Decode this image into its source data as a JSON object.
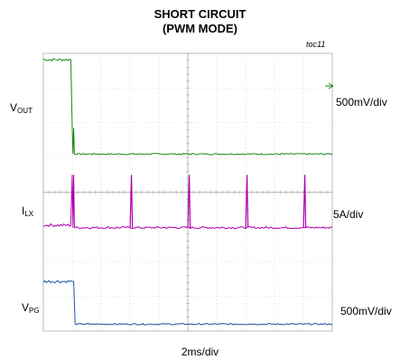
{
  "chart_data": {
    "type": "line",
    "title": "SHORT CIRCUIT",
    "subtitle": "(PWM MODE)",
    "figure_ref": "toc11",
    "xlabel": "2ms/div",
    "grid": true,
    "x_divisions": 10,
    "y_divisions": 8,
    "series": [
      {
        "name": "VOUT",
        "label_main": "V",
        "label_sub": "OUT",
        "scale": "500mV/div",
        "color": "#1a8a1a",
        "baseline_div": 5.1,
        "pre_short_div": 7.82,
        "event_div": 1.0,
        "spike_div": 5.85,
        "pulses_div": []
      },
      {
        "name": "ILX",
        "label_main": "I",
        "label_sub": "LX",
        "scale": "5A/div",
        "color": "#b000b0",
        "baseline_div": 2.98,
        "pre_short_div": 3.05,
        "event_div": 1.0,
        "spike_div": 4.5,
        "pulses_div": [
          3.05,
          5.05,
          7.05,
          9.05
        ],
        "pulse_height_div": 4.5
      },
      {
        "name": "VPG",
        "label_main": "V",
        "label_sub": "PG",
        "scale": "500mV/div",
        "color": "#1f4fa0",
        "baseline_div": 0.2,
        "pre_short_div": 1.43,
        "event_div": 1.0,
        "spike_div": 1.43,
        "pulses_div": []
      }
    ]
  }
}
